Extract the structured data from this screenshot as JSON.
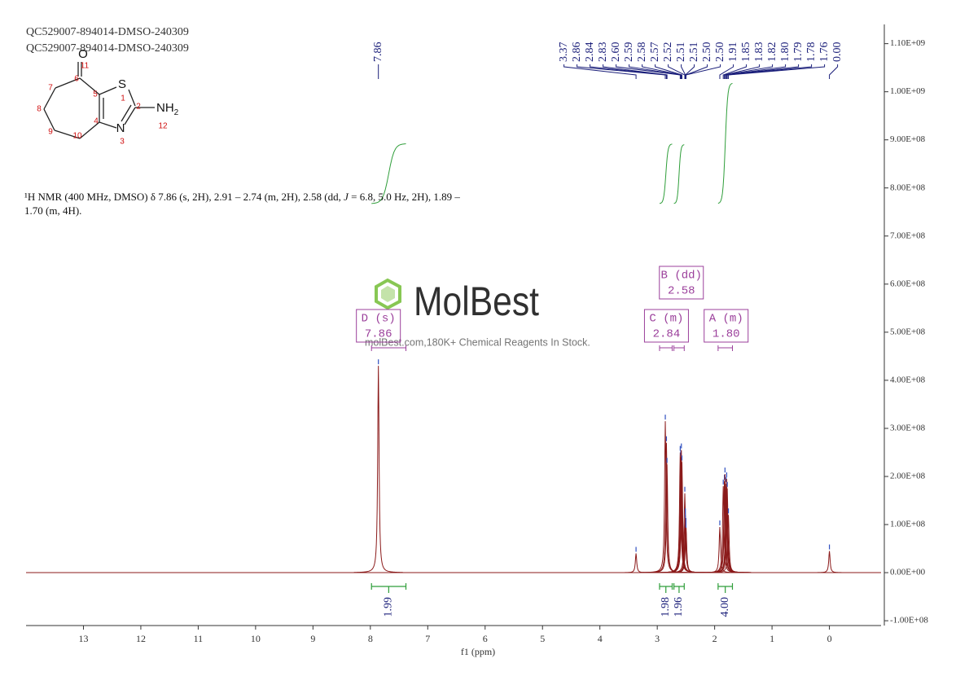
{
  "chart_data": {
    "type": "nmr",
    "title_lines": [
      "QC529007-894014-DMSO-240309",
      "QC529007-894014-DMSO-240309"
    ],
    "description": [
      "¹H NMR (400 MHz, DMSO) δ 7.86 (s, 2H), 2.91 – 2.74 (m, 2H), 2.58 (dd, ",
      "J",
      " = 6.8, 5.0 Hz, 2H), 1.89 – 1.70 (m, 4H)."
    ],
    "xlabel": "f1 (ppm)",
    "xlim": [
      14,
      -0.9
    ],
    "xticks": [
      13,
      12,
      11,
      10,
      9,
      8,
      7,
      6,
      5,
      4,
      3,
      2,
      1,
      0
    ],
    "ylim": [
      -110000000,
      1140000000
    ],
    "yticks": [
      {
        "value": 1100000000,
        "label": "1.10E+09"
      },
      {
        "value": 1000000000,
        "label": "1.00E+09"
      },
      {
        "value": 900000000,
        "label": "9.00E+08"
      },
      {
        "value": 800000000,
        "label": "8.00E+08"
      },
      {
        "value": 700000000,
        "label": "7.00E+08"
      },
      {
        "value": 600000000,
        "label": "6.00E+08"
      },
      {
        "value": 500000000,
        "label": "5.00E+08"
      },
      {
        "value": 400000000,
        "label": "4.00E+08"
      },
      {
        "value": 300000000,
        "label": "3.00E+08"
      },
      {
        "value": 200000000,
        "label": "2.00E+08"
      },
      {
        "value": 100000000,
        "label": "1.00E+08"
      },
      {
        "value": 0,
        "label": "0.00E+00"
      },
      {
        "value": -100000000,
        "label": "-1.00E+08"
      }
    ],
    "color": "#8b1a1a",
    "peaks": {
      "x": [
        7.86,
        3.37,
        2.86,
        2.84,
        2.83,
        2.6,
        2.59,
        2.58,
        2.57,
        2.52,
        2.51,
        2.51,
        2.5,
        2.5,
        1.91,
        1.85,
        1.83,
        1.82,
        1.8,
        1.79,
        1.78,
        1.76,
        0
      ],
      "x_labels": [
        "7.86",
        "3.37",
        "2.86",
        "2.84",
        "2.83",
        "2.60",
        "2.59",
        "2.58",
        "2.57",
        "2.52",
        "2.51",
        "2.51",
        "2.50",
        "2.50",
        "1.91",
        "1.85",
        "1.83",
        "1.82",
        "1.80",
        "1.79",
        "1.78",
        "1.76",
        "0.00"
      ],
      "values": [
        430000000,
        40000000,
        315000000,
        270000000,
        225000000,
        250000000,
        240000000,
        255000000,
        230000000,
        165000000,
        120000000,
        110000000,
        100000000,
        90000000,
        95000000,
        180000000,
        190000000,
        205000000,
        185000000,
        195000000,
        175000000,
        120000000,
        45000000
      ]
    },
    "multiplets": [
      {
        "name": "D (s)",
        "shift": 7.86,
        "shift_label": "7.86",
        "range": [
          7.98,
          7.38
        ],
        "integral": 1.99,
        "integral_label": "1.99"
      },
      {
        "name": "C (m)",
        "shift": 2.84,
        "shift_label": "2.84",
        "range": [
          2.96,
          2.74
        ],
        "integral": 1.98,
        "integral_label": "1.98"
      },
      {
        "name": "B (dd)",
        "shift": 2.58,
        "shift_label": "2.58",
        "range": [
          2.71,
          2.53
        ],
        "integral": 1.96,
        "integral_label": "1.96"
      },
      {
        "name": "A (m)",
        "shift": 1.8,
        "shift_label": "1.80",
        "range": [
          1.94,
          1.69
        ],
        "integral": 4,
        "integral_label": "4.00"
      }
    ]
  },
  "structure": {
    "atoms": [
      "O",
      "S",
      "N",
      "NH"
    ],
    "subscript": "2",
    "numbers": [
      "11",
      "6",
      "7",
      "8",
      "9",
      "10",
      "5",
      "4",
      "1",
      "2",
      "3",
      "12"
    ]
  },
  "watermark": {
    "brand": "MolBest",
    "tagline": "molBest.com,180K+ Chemical Reagents In Stock."
  }
}
